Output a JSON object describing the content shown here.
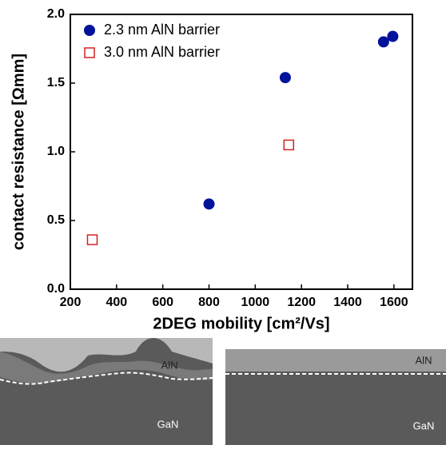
{
  "chart_data": {
    "type": "scatter",
    "x_label": "2DEG mobility [cm²/Vs]",
    "y_label": "contact resistance [Ωmm]",
    "xlim": [
      200,
      1680
    ],
    "ylim": [
      0,
      2
    ],
    "xticks": [
      200,
      400,
      600,
      800,
      1000,
      1200,
      1400,
      1600
    ],
    "yticks": [
      {
        "value": 0,
        "label": "0.0"
      },
      {
        "value": 0.5,
        "label": "0.5"
      },
      {
        "value": 1,
        "label": "1.0"
      },
      {
        "value": 1.5,
        "label": "1.5"
      },
      {
        "value": 2,
        "label": "2.0"
      }
    ],
    "legend": "upper left",
    "series": [
      {
        "name": "2.3 nm AlN barrier",
        "color": "#00129a",
        "marker": "circle",
        "x": [
          800,
          1130,
          1555,
          1595
        ],
        "values": [
          0.62,
          1.54,
          1.8,
          1.84
        ]
      },
      {
        "name": "3.0 nm AlN barrier",
        "color": "#d42020",
        "marker": "square-open",
        "x": [
          295,
          1145
        ],
        "values": [
          0.36,
          1.05
        ]
      }
    ]
  },
  "illustration": {
    "panels": [
      {
        "top": "AlN",
        "bottom": "GaN"
      },
      {
        "top": "AlN",
        "bottom": "GaN"
      }
    ]
  }
}
